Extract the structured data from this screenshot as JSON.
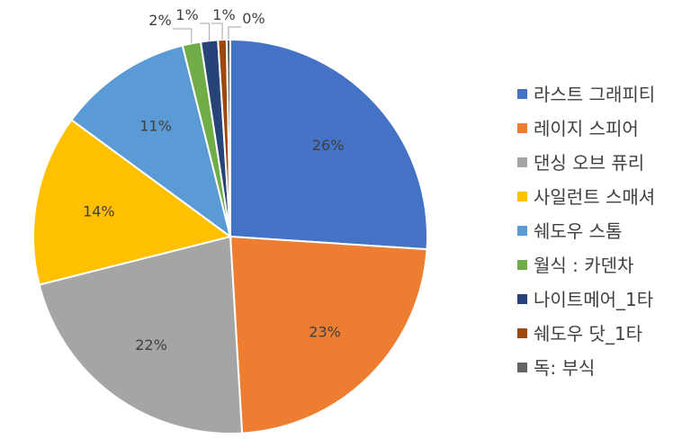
{
  "chart_data": {
    "type": "pie",
    "title": "",
    "legend_position": "right",
    "slices": [
      {
        "label": "라스트 그래피티",
        "value": 26,
        "display": "26%",
        "color": "#4472C4"
      },
      {
        "label": "레이지 스피어",
        "value": 23,
        "display": "23%",
        "color": "#ED7D31"
      },
      {
        "label": "댄싱 오브 퓨리",
        "value": 22,
        "display": "22%",
        "color": "#A5A5A5"
      },
      {
        "label": "사일런트 스매셔",
        "value": 14,
        "display": "14%",
        "color": "#FFC000"
      },
      {
        "label": "쉐도우 스톰",
        "value": 11,
        "display": "11%",
        "color": "#5B9BD5"
      },
      {
        "label": "월식 : 카덴차",
        "value": 1.5,
        "display": "2%",
        "color": "#70AD47"
      },
      {
        "label": "나이트메어_1타",
        "value": 1.4,
        "display": "1%",
        "color": "#264478"
      },
      {
        "label": "쉐도우 닷_1타",
        "value": 0.7,
        "display": "1%",
        "color": "#9E480E"
      },
      {
        "label": "독: 부식",
        "value": 0.3,
        "display": "0%",
        "color": "#636363"
      }
    ]
  }
}
